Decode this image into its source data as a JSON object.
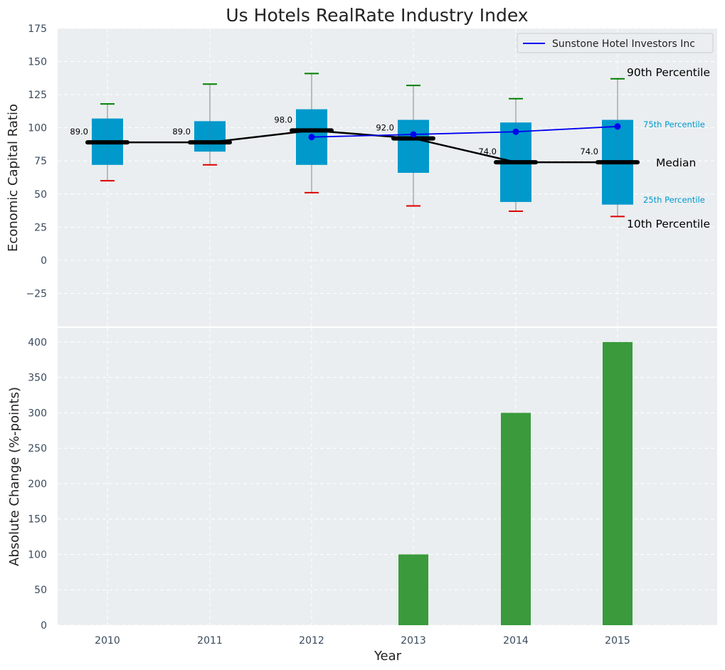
{
  "chart_data": {
    "title": "Us Hotels RealRate Industry Index",
    "xlabel": "Year",
    "years": [
      "2010",
      "2011",
      "2012",
      "2013",
      "2014",
      "2015"
    ],
    "top": {
      "type": "box",
      "ylabel": "Economic Capital Ratio",
      "ylim": [
        -50,
        175
      ],
      "yticks": [
        "175",
        "150",
        "125",
        "100",
        "75",
        "50",
        "25",
        "0",
        "−25"
      ],
      "ytick_values": [
        175,
        150,
        125,
        100,
        75,
        50,
        25,
        0,
        -25
      ],
      "p10": [
        60,
        72,
        51,
        41,
        37,
        33
      ],
      "p25": [
        72,
        82,
        72,
        66,
        44,
        42
      ],
      "median": [
        89,
        89,
        98,
        92,
        74,
        74
      ],
      "p75": [
        107,
        105,
        114,
        106,
        104,
        106
      ],
      "p90": [
        118,
        133,
        141,
        132,
        122,
        137
      ],
      "median_labels": [
        "89.0",
        "89.0",
        "98.0",
        "92.0",
        "74.0",
        "74.0"
      ],
      "company_series": {
        "name": "Sunstone Hotel Investors Inc",
        "years": [
          "2012",
          "2013",
          "2014",
          "2015"
        ],
        "values": [
          93,
          95,
          97,
          101
        ]
      },
      "legend": "Sunstone Hotel Investors Inc",
      "legend_position": "top-right",
      "annotations": {
        "p90": "90th Percentile",
        "p75": "75th Percentile",
        "median": "Median",
        "p25": "25th Percentile",
        "p10": "10th Percentile"
      }
    },
    "bottom": {
      "type": "bar",
      "ylabel": "Absolute Change (%-points)",
      "ylim": [
        0,
        420
      ],
      "yticks": [
        "400",
        "350",
        "300",
        "250",
        "200",
        "150",
        "100",
        "50",
        "0"
      ],
      "ytick_values": [
        400,
        350,
        300,
        250,
        200,
        150,
        100,
        50,
        0
      ],
      "values": [
        0,
        0,
        0,
        100,
        300,
        400
      ]
    },
    "colors": {
      "box": "#0099cc",
      "median": "#000000",
      "company": "#0000ee",
      "p90_cap": "#008000",
      "p10_cap": "#dd0000",
      "bar": "#3a9a3c",
      "panel_bg": "#eaeef0",
      "grid": "#ffffff"
    }
  }
}
